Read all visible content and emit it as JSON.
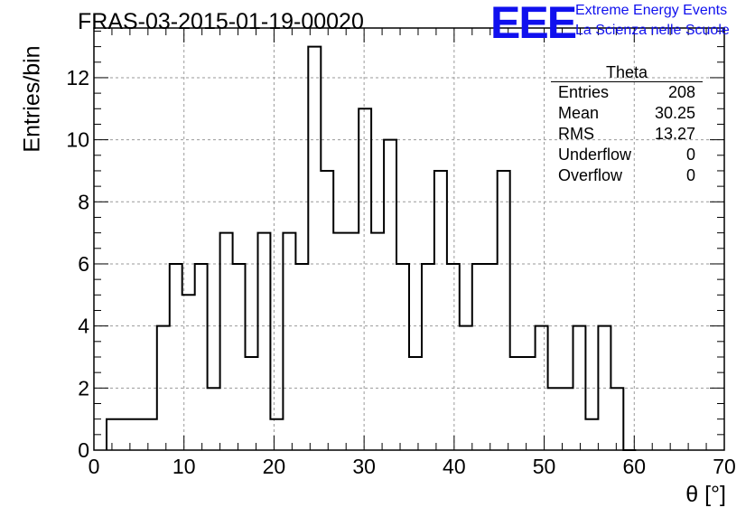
{
  "title": "FRAS-03-2015-01-19-00020",
  "logo": {
    "mark": "EEE",
    "line1": "Extreme Energy Events",
    "line2": "La Scienza nelle Scuole",
    "color": "#1010ee"
  },
  "stats": {
    "title": "Theta",
    "rows": [
      {
        "label": "Entries",
        "value": "208"
      },
      {
        "label": "Mean",
        "value": "30.25"
      },
      {
        "label": "RMS",
        "value": "13.27"
      },
      {
        "label": "Underflow",
        "value": "0"
      },
      {
        "label": "Overflow",
        "value": "0"
      }
    ]
  },
  "chart_data": {
    "type": "bar",
    "style": "step-histogram",
    "title": "FRAS-03-2015-01-19-00020",
    "xlabel": "θ [°]",
    "ylabel": "Entries/bin",
    "xlim": [
      0,
      70
    ],
    "ylim": [
      0,
      13.6
    ],
    "grid": true,
    "bin_width": 1.4,
    "bin_edges_start": 1.4,
    "x_ticks": [
      0,
      10,
      20,
      30,
      40,
      50,
      60,
      70
    ],
    "y_ticks": [
      0,
      2,
      4,
      6,
      8,
      10,
      12
    ],
    "values": [
      1,
      1,
      1,
      1,
      4,
      6,
      5,
      6,
      2,
      7,
      6,
      3,
      7,
      1,
      7,
      6,
      13,
      9,
      7,
      7,
      11,
      7,
      10,
      6,
      3,
      6,
      9,
      6,
      4,
      6,
      6,
      9,
      3,
      3,
      4,
      2,
      2,
      4,
      1,
      4,
      2,
      0
    ],
    "line_color": "#000000"
  }
}
